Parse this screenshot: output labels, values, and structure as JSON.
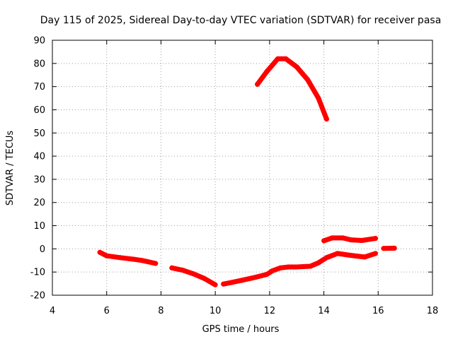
{
  "chart_data": {
    "type": "line",
    "title": "Day 115 of 2025, Sidereal Day-to-day VTEC variation (SDTVAR) for receiver pasa",
    "xlabel": "GPS time / hours",
    "ylabel": "SDTVAR / TECUs",
    "xlim": [
      4,
      18
    ],
    "ylim": [
      -20,
      90
    ],
    "xticks": [
      4,
      6,
      8,
      10,
      12,
      14,
      16,
      18
    ],
    "yticks": [
      -20,
      -10,
      0,
      10,
      20,
      30,
      40,
      50,
      60,
      70,
      80,
      90
    ],
    "grid": true,
    "series_color": "#ff0000",
    "series": [
      {
        "name": "segment-1",
        "points": [
          [
            5.75,
            -1.5
          ],
          [
            6.0,
            -3.0
          ],
          [
            6.5,
            -3.8
          ],
          [
            7.0,
            -4.5
          ],
          [
            7.3,
            -5.0
          ],
          [
            7.5,
            -5.5
          ],
          [
            7.8,
            -6.3
          ]
        ]
      },
      {
        "name": "segment-2",
        "points": [
          [
            8.4,
            -8.2
          ],
          [
            8.8,
            -9.2
          ],
          [
            9.2,
            -10.8
          ],
          [
            9.6,
            -12.8
          ],
          [
            10.0,
            -15.5
          ]
        ]
      },
      {
        "name": "segment-3",
        "points": [
          [
            10.3,
            -15.2
          ],
          [
            10.6,
            -14.5
          ],
          [
            11.0,
            -13.5
          ],
          [
            11.5,
            -12.2
          ],
          [
            11.9,
            -11.0
          ],
          [
            12.1,
            -9.5
          ],
          [
            12.4,
            -8.2
          ],
          [
            12.7,
            -7.8
          ],
          [
            13.0,
            -7.8
          ],
          [
            13.5,
            -7.5
          ],
          [
            13.8,
            -6.0
          ],
          [
            14.1,
            -3.8
          ],
          [
            14.5,
            -2.0
          ],
          [
            15.0,
            -2.8
          ],
          [
            15.5,
            -3.5
          ],
          [
            15.9,
            -2.0
          ]
        ]
      },
      {
        "name": "segment-4",
        "points": [
          [
            14.0,
            3.5
          ],
          [
            14.3,
            4.7
          ],
          [
            14.7,
            4.7
          ],
          [
            15.0,
            3.9
          ],
          [
            15.4,
            3.6
          ],
          [
            15.9,
            4.5
          ]
        ]
      },
      {
        "name": "segment-5",
        "points": [
          [
            16.2,
            0.2
          ],
          [
            16.6,
            0.3
          ]
        ]
      },
      {
        "name": "segment-6",
        "points": [
          [
            11.55,
            71.0
          ],
          [
            11.9,
            76.5
          ],
          [
            12.3,
            82.0
          ],
          [
            12.6,
            82.0
          ],
          [
            13.0,
            78.5
          ],
          [
            13.4,
            73.0
          ],
          [
            13.8,
            65.0
          ],
          [
            14.1,
            56.0
          ]
        ]
      }
    ]
  }
}
